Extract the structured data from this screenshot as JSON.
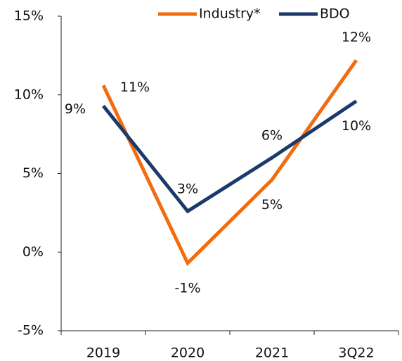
{
  "chart_data": {
    "type": "line",
    "categories": [
      "2019",
      "2020",
      "2021",
      "3Q22"
    ],
    "series": [
      {
        "name": "Industry*",
        "color": "#f26b0f",
        "values": [
          10.6,
          -0.7,
          4.6,
          12.2
        ],
        "value_labels": [
          "11%",
          "-1%",
          "5%",
          "12%"
        ]
      },
      {
        "name": "BDO",
        "color": "#1b3a6b",
        "values": [
          9.3,
          2.6,
          6.0,
          9.6
        ],
        "value_labels": [
          "9%",
          "3%",
          "6%",
          "10%"
        ]
      }
    ],
    "ylim": [
      -5,
      15
    ],
    "yticks": [
      {
        "value": -5,
        "label": "-5%"
      },
      {
        "value": 0,
        "label": "0%"
      },
      {
        "value": 5,
        "label": "5%"
      },
      {
        "value": 10,
        "label": "10%"
      },
      {
        "value": 15,
        "label": "15%"
      }
    ],
    "legend": "top",
    "grid": false
  }
}
